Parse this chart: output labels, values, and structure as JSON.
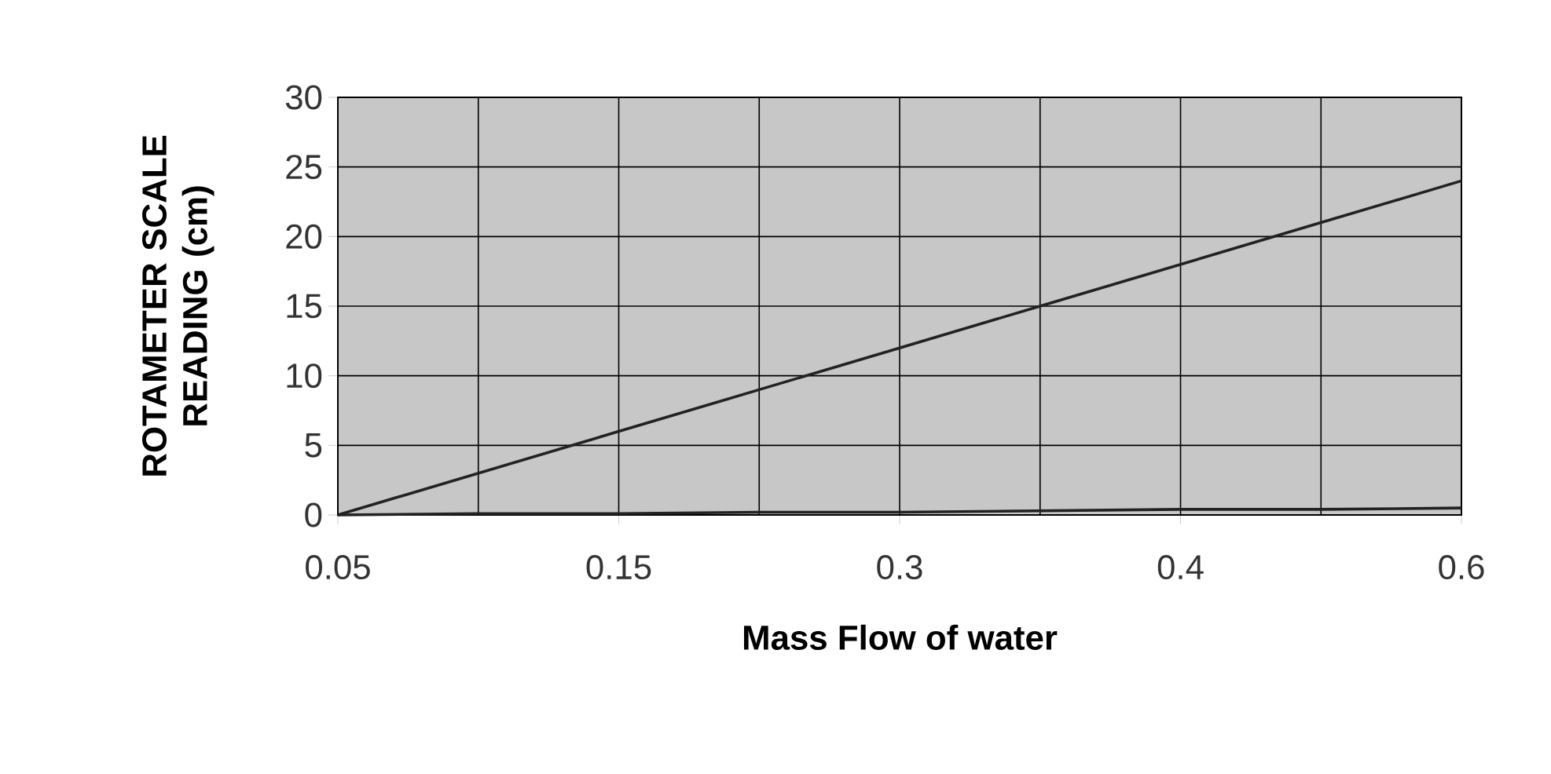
{
  "chart_data": {
    "type": "line",
    "xlabel": "Mass Flow of water",
    "ylabel": "ROTAMETER SCALE READING (cm)",
    "categories": [
      "0.05",
      null,
      "0.15",
      null,
      "0.3",
      null,
      "0.4",
      null,
      "0.6"
    ],
    "series": [
      {
        "color": "#222222",
        "values": [
          0,
          3,
          6,
          9,
          12,
          15,
          18,
          21,
          24
        ]
      },
      {
        "color": "#222222",
        "values": [
          0,
          0.1,
          0.1,
          0.2,
          0.2,
          0.3,
          0.4,
          0.4,
          0.5
        ]
      }
    ],
    "ylim": [
      0,
      30
    ],
    "yticks": [
      0,
      5,
      10,
      15,
      20,
      25,
      30
    ],
    "grid": true,
    "marker": "none",
    "line_style": "solid"
  }
}
